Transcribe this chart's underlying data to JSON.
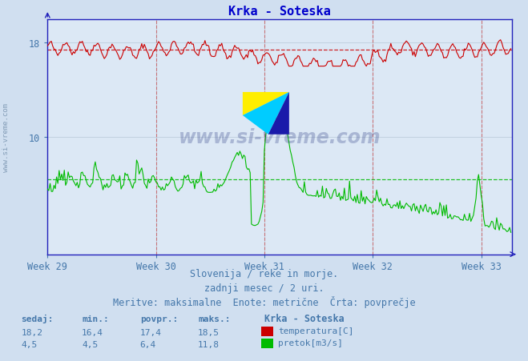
{
  "title": "Krka - Soteska",
  "title_color": "#0000cc",
  "bg_color": "#d0dff0",
  "plot_bg_color": "#dce8f5",
  "grid_color": "#b8c8d8",
  "axis_color": "#2222bb",
  "text_color": "#4477aa",
  "xlabel_weeks": [
    "Week 29",
    "Week 30",
    "Week 31",
    "Week 32",
    "Week 33"
  ],
  "yticks": [
    10,
    18
  ],
  "ylim": [
    0,
    20
  ],
  "xlim": [
    0,
    360
  ],
  "week_positions": [
    0,
    84,
    168,
    252,
    336
  ],
  "temp_avg": 17.4,
  "temp_min": 16.4,
  "temp_max": 18.5,
  "temp_current": 18.2,
  "flow_avg": 6.4,
  "flow_min": 4.5,
  "flow_max": 11.8,
  "flow_current": 4.5,
  "watermark": "www.si-vreme.com",
  "footer_line1": "Slovenija / reke in morje.",
  "footer_line2": "zadnji mesec / 2 uri.",
  "footer_line3": "Meritve: maksimalne  Enote: metrične  Črta: povprečje",
  "legend_title": "Krka - Soteska",
  "label_temp": "temperatura[C]",
  "label_flow": "pretok[m3/s]",
  "temp_color": "#cc0000",
  "flow_color": "#00bb00",
  "n_points": 360,
  "figsize": [
    6.59,
    4.52
  ],
  "dpi": 100
}
